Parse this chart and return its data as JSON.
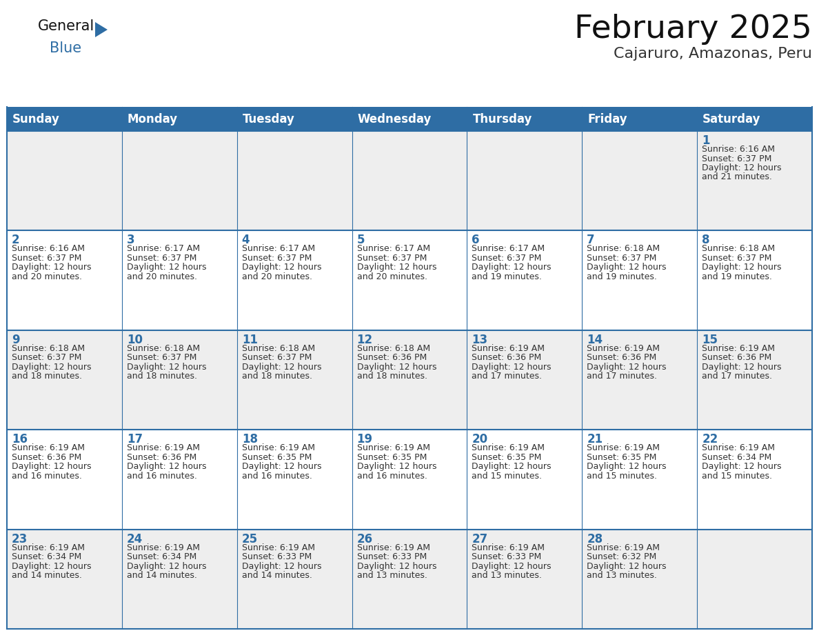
{
  "title": "February 2025",
  "subtitle": "Cajaruro, Amazonas, Peru",
  "header_bg": "#2E6DA4",
  "header_text_color": "#FFFFFF",
  "cell_bg_white": "#FFFFFF",
  "cell_bg_gray": "#EEEEEE",
  "day_number_color": "#2E6DA4",
  "info_text_color": "#333333",
  "grid_line_color": "#2E6DA4",
  "days_of_week": [
    "Sunday",
    "Monday",
    "Tuesday",
    "Wednesday",
    "Thursday",
    "Friday",
    "Saturday"
  ],
  "weeks": [
    [
      null,
      null,
      null,
      null,
      null,
      null,
      1
    ],
    [
      2,
      3,
      4,
      5,
      6,
      7,
      8
    ],
    [
      9,
      10,
      11,
      12,
      13,
      14,
      15
    ],
    [
      16,
      17,
      18,
      19,
      20,
      21,
      22
    ],
    [
      23,
      24,
      25,
      26,
      27,
      28,
      null
    ]
  ],
  "row_bg": [
    "gray",
    "white",
    "gray",
    "white",
    "gray"
  ],
  "cell_data": {
    "1": {
      "sunrise": "6:16 AM",
      "sunset": "6:37 PM",
      "daylight_hours": 12,
      "daylight_minutes": 21
    },
    "2": {
      "sunrise": "6:16 AM",
      "sunset": "6:37 PM",
      "daylight_hours": 12,
      "daylight_minutes": 20
    },
    "3": {
      "sunrise": "6:17 AM",
      "sunset": "6:37 PM",
      "daylight_hours": 12,
      "daylight_minutes": 20
    },
    "4": {
      "sunrise": "6:17 AM",
      "sunset": "6:37 PM",
      "daylight_hours": 12,
      "daylight_minutes": 20
    },
    "5": {
      "sunrise": "6:17 AM",
      "sunset": "6:37 PM",
      "daylight_hours": 12,
      "daylight_minutes": 20
    },
    "6": {
      "sunrise": "6:17 AM",
      "sunset": "6:37 PM",
      "daylight_hours": 12,
      "daylight_minutes": 19
    },
    "7": {
      "sunrise": "6:18 AM",
      "sunset": "6:37 PM",
      "daylight_hours": 12,
      "daylight_minutes": 19
    },
    "8": {
      "sunrise": "6:18 AM",
      "sunset": "6:37 PM",
      "daylight_hours": 12,
      "daylight_minutes": 19
    },
    "9": {
      "sunrise": "6:18 AM",
      "sunset": "6:37 PM",
      "daylight_hours": 12,
      "daylight_minutes": 18
    },
    "10": {
      "sunrise": "6:18 AM",
      "sunset": "6:37 PM",
      "daylight_hours": 12,
      "daylight_minutes": 18
    },
    "11": {
      "sunrise": "6:18 AM",
      "sunset": "6:37 PM",
      "daylight_hours": 12,
      "daylight_minutes": 18
    },
    "12": {
      "sunrise": "6:18 AM",
      "sunset": "6:36 PM",
      "daylight_hours": 12,
      "daylight_minutes": 18
    },
    "13": {
      "sunrise": "6:19 AM",
      "sunset": "6:36 PM",
      "daylight_hours": 12,
      "daylight_minutes": 17
    },
    "14": {
      "sunrise": "6:19 AM",
      "sunset": "6:36 PM",
      "daylight_hours": 12,
      "daylight_minutes": 17
    },
    "15": {
      "sunrise": "6:19 AM",
      "sunset": "6:36 PM",
      "daylight_hours": 12,
      "daylight_minutes": 17
    },
    "16": {
      "sunrise": "6:19 AM",
      "sunset": "6:36 PM",
      "daylight_hours": 12,
      "daylight_minutes": 16
    },
    "17": {
      "sunrise": "6:19 AM",
      "sunset": "6:36 PM",
      "daylight_hours": 12,
      "daylight_minutes": 16
    },
    "18": {
      "sunrise": "6:19 AM",
      "sunset": "6:35 PM",
      "daylight_hours": 12,
      "daylight_minutes": 16
    },
    "19": {
      "sunrise": "6:19 AM",
      "sunset": "6:35 PM",
      "daylight_hours": 12,
      "daylight_minutes": 16
    },
    "20": {
      "sunrise": "6:19 AM",
      "sunset": "6:35 PM",
      "daylight_hours": 12,
      "daylight_minutes": 15
    },
    "21": {
      "sunrise": "6:19 AM",
      "sunset": "6:35 PM",
      "daylight_hours": 12,
      "daylight_minutes": 15
    },
    "22": {
      "sunrise": "6:19 AM",
      "sunset": "6:34 PM",
      "daylight_hours": 12,
      "daylight_minutes": 15
    },
    "23": {
      "sunrise": "6:19 AM",
      "sunset": "6:34 PM",
      "daylight_hours": 12,
      "daylight_minutes": 14
    },
    "24": {
      "sunrise": "6:19 AM",
      "sunset": "6:34 PM",
      "daylight_hours": 12,
      "daylight_minutes": 14
    },
    "25": {
      "sunrise": "6:19 AM",
      "sunset": "6:33 PM",
      "daylight_hours": 12,
      "daylight_minutes": 14
    },
    "26": {
      "sunrise": "6:19 AM",
      "sunset": "6:33 PM",
      "daylight_hours": 12,
      "daylight_minutes": 13
    },
    "27": {
      "sunrise": "6:19 AM",
      "sunset": "6:33 PM",
      "daylight_hours": 12,
      "daylight_minutes": 13
    },
    "28": {
      "sunrise": "6:19 AM",
      "sunset": "6:32 PM",
      "daylight_hours": 12,
      "daylight_minutes": 13
    }
  },
  "logo_triangle_color": "#2E6DA4",
  "title_fontsize": 34,
  "subtitle_fontsize": 16,
  "header_fontsize": 12,
  "day_num_fontsize": 12,
  "info_fontsize": 9
}
